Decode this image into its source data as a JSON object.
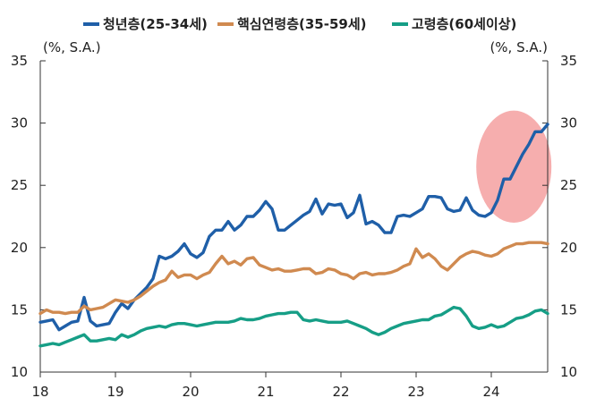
{
  "chart_data": {
    "type": "line",
    "x_ticks": [
      "18",
      "19",
      "20",
      "21",
      "22",
      "23",
      "24"
    ],
    "ylim": [
      10,
      35
    ],
    "y_ticks": [
      10,
      15,
      20,
      25,
      30,
      35
    ],
    "left_unit": "(%, S.A.)",
    "right_unit": "(%, S.A.)",
    "legend_position": "top",
    "grid": false,
    "highlight": {
      "shape": "ellipse",
      "color": "#f4a0a0",
      "x_range": [
        23.8,
        24.8
      ],
      "y_range": [
        22.0,
        31.0
      ]
    },
    "series": [
      {
        "name": "청년층(25-34세)",
        "color": "#1f5fa8",
        "values": [
          14.0,
          14.1,
          14.2,
          13.4,
          13.7,
          14.0,
          14.1,
          16.0,
          14.1,
          13.7,
          13.8,
          13.9,
          14.8,
          15.5,
          15.1,
          15.8,
          16.3,
          16.8,
          17.5,
          19.3,
          19.1,
          19.3,
          19.7,
          20.3,
          19.5,
          19.2,
          19.6,
          20.9,
          21.4,
          21.4,
          22.1,
          21.4,
          21.8,
          22.5,
          22.5,
          23.0,
          23.7,
          23.1,
          21.4,
          21.4,
          21.8,
          22.2,
          22.6,
          22.9,
          23.9,
          22.7,
          23.5,
          23.4,
          23.5,
          22.4,
          22.8,
          24.2,
          21.9,
          22.1,
          21.8,
          21.2,
          21.2,
          22.5,
          22.6,
          22.5,
          22.8,
          23.1,
          24.1,
          24.1,
          24.0,
          23.1,
          22.9,
          23.0,
          24.0,
          23.0,
          22.6,
          22.5,
          22.8,
          23.8,
          25.5,
          25.5,
          26.5,
          27.5,
          28.3,
          29.3,
          29.3,
          29.9
        ]
      },
      {
        "name": "핵심연령층(35-59세)",
        "color": "#d08a50",
        "values": [
          14.7,
          15.0,
          14.8,
          14.8,
          14.7,
          14.8,
          14.8,
          15.3,
          15.0,
          15.1,
          15.2,
          15.5,
          15.8,
          15.7,
          15.6,
          15.8,
          16.1,
          16.5,
          16.9,
          17.2,
          17.4,
          18.1,
          17.6,
          17.8,
          17.8,
          17.5,
          17.8,
          18.0,
          18.7,
          19.3,
          18.7,
          18.9,
          18.6,
          19.1,
          19.2,
          18.6,
          18.4,
          18.2,
          18.3,
          18.1,
          18.1,
          18.2,
          18.3,
          18.3,
          17.9,
          18.0,
          18.3,
          18.2,
          17.9,
          17.8,
          17.5,
          17.9,
          18.0,
          17.8,
          17.9,
          17.9,
          18.0,
          18.2,
          18.5,
          18.7,
          19.9,
          19.2,
          19.5,
          19.1,
          18.5,
          18.2,
          18.7,
          19.2,
          19.5,
          19.7,
          19.6,
          19.4,
          19.3,
          19.5,
          19.9,
          20.1,
          20.3,
          20.3,
          20.4,
          20.4,
          20.4,
          20.3
        ]
      },
      {
        "name": "고령층(60세이상)",
        "color": "#169e86",
        "values": [
          12.1,
          12.2,
          12.3,
          12.2,
          12.4,
          12.6,
          12.8,
          13.0,
          12.5,
          12.5,
          12.6,
          12.7,
          12.6,
          13.0,
          12.8,
          13.0,
          13.3,
          13.5,
          13.6,
          13.7,
          13.6,
          13.8,
          13.9,
          13.9,
          13.8,
          13.7,
          13.8,
          13.9,
          14.0,
          14.0,
          14.0,
          14.1,
          14.3,
          14.2,
          14.2,
          14.3,
          14.5,
          14.6,
          14.7,
          14.7,
          14.8,
          14.8,
          14.2,
          14.1,
          14.2,
          14.1,
          14.0,
          14.0,
          14.0,
          14.1,
          13.9,
          13.7,
          13.5,
          13.2,
          13.0,
          13.2,
          13.5,
          13.7,
          13.9,
          14.0,
          14.1,
          14.2,
          14.2,
          14.5,
          14.6,
          14.9,
          15.2,
          15.1,
          14.5,
          13.7,
          13.5,
          13.6,
          13.8,
          13.6,
          13.7,
          14.0,
          14.3,
          14.4,
          14.6,
          14.9,
          15.0,
          14.7
        ]
      }
    ]
  }
}
